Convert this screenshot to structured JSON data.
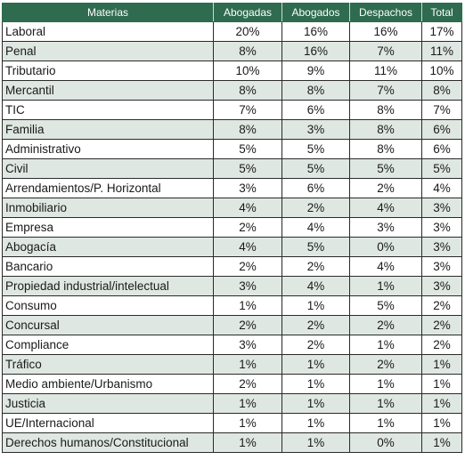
{
  "table": {
    "headers": [
      "Materias",
      "Abogadas",
      "Abogados",
      "Despachos",
      "Total"
    ],
    "rows": [
      [
        "Laboral",
        "20%",
        "16%",
        "16%",
        "17%"
      ],
      [
        "Penal",
        "8%",
        "16%",
        "7%",
        "11%"
      ],
      [
        "Tributario",
        "10%",
        "9%",
        "11%",
        "10%"
      ],
      [
        "Mercantil",
        "8%",
        "8%",
        "7%",
        "8%"
      ],
      [
        "TIC",
        "7%",
        "6%",
        "8%",
        "7%"
      ],
      [
        "Familia",
        "8%",
        "3%",
        "8%",
        "6%"
      ],
      [
        "Administrativo",
        "5%",
        "5%",
        "8%",
        "6%"
      ],
      [
        "Civil",
        "5%",
        "5%",
        "5%",
        "5%"
      ],
      [
        "Arrendamientos/P. Horizontal",
        "3%",
        "6%",
        "2%",
        "4%"
      ],
      [
        "Inmobiliario",
        "4%",
        "2%",
        "4%",
        "3%"
      ],
      [
        "Empresa",
        "2%",
        "4%",
        "3%",
        "3%"
      ],
      [
        "Abogacía",
        "4%",
        "5%",
        "0%",
        "3%"
      ],
      [
        "Bancario",
        "2%",
        "2%",
        "4%",
        "3%"
      ],
      [
        "Propiedad industrial/intelectual",
        "3%",
        "4%",
        "1%",
        "3%"
      ],
      [
        "Consumo",
        "1%",
        "1%",
        "5%",
        "2%"
      ],
      [
        "Concursal",
        "2%",
        "2%",
        "2%",
        "2%"
      ],
      [
        "Compliance",
        "3%",
        "2%",
        "1%",
        "2%"
      ],
      [
        "Tráfico",
        "1%",
        "1%",
        "2%",
        "1%"
      ],
      [
        "Medio ambiente/Urbanismo",
        "2%",
        "1%",
        "1%",
        "1%"
      ],
      [
        "Justicia",
        "1%",
        "1%",
        "1%",
        "1%"
      ],
      [
        "UE/Internacional",
        "1%",
        "1%",
        "1%",
        "1%"
      ],
      [
        "Derechos humanos/Constitucional",
        "1%",
        "1%",
        "0%",
        "1%"
      ]
    ]
  },
  "colors": {
    "header_bg": "#2e6b4f",
    "header_text": "#ffffff",
    "row_shade": "#dfe7e2",
    "row_plain": "#ffffff"
  }
}
